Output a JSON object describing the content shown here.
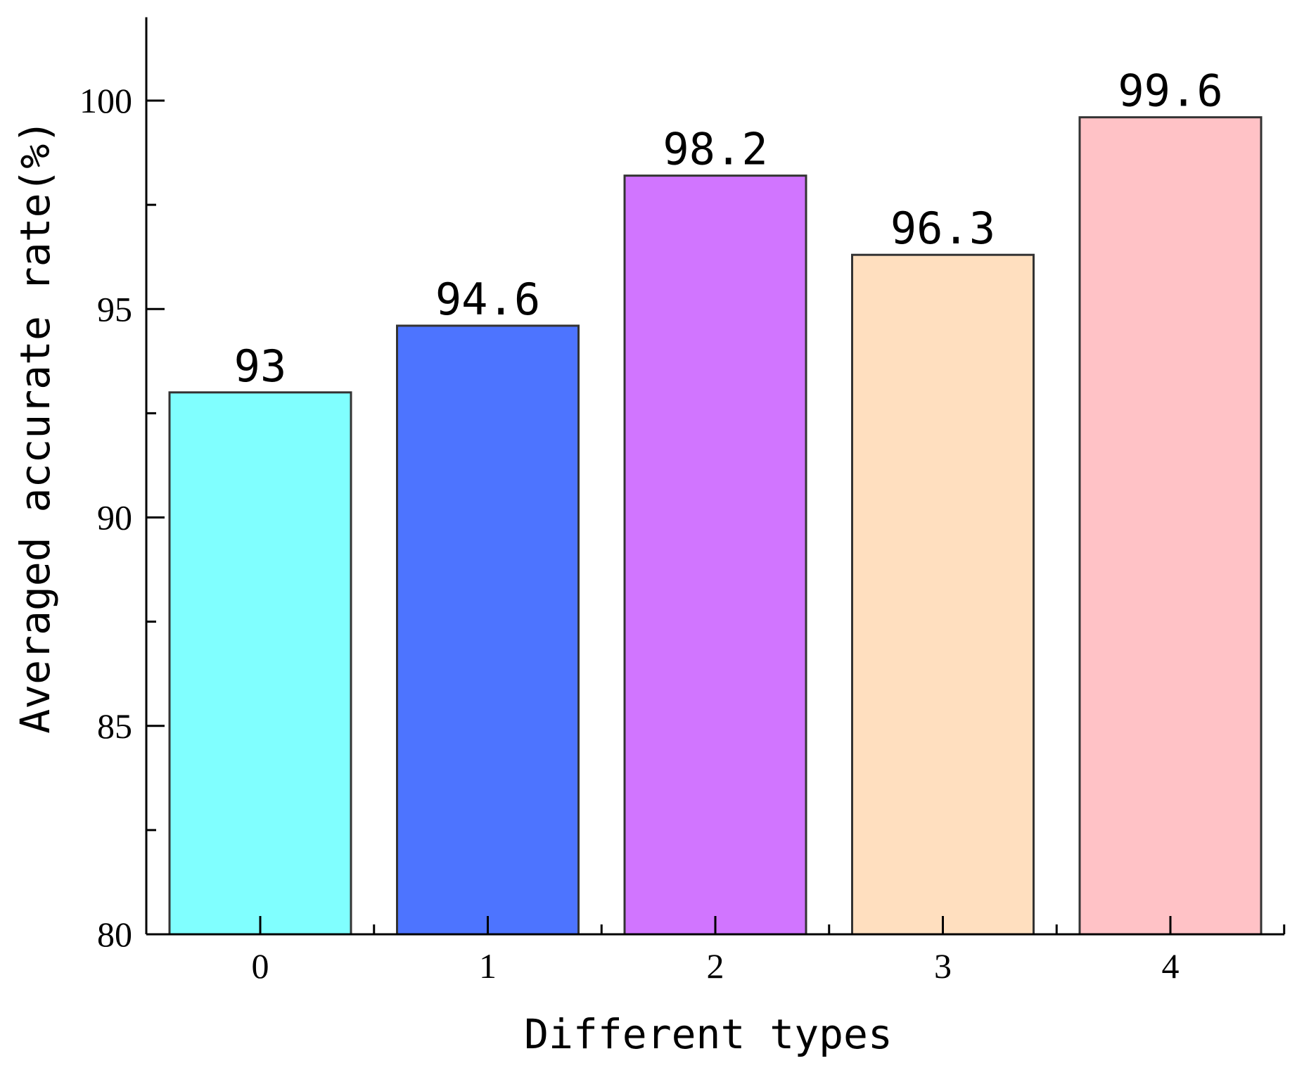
{
  "chart_data": {
    "type": "bar",
    "title": "",
    "xlabel": "Different types",
    "ylabel": "Averaged accurate rate(%)",
    "categories": [
      "0",
      "1",
      "2",
      "3",
      "4"
    ],
    "values": [
      93,
      94.6,
      98.2,
      96.3,
      99.6
    ],
    "value_labels": [
      "93",
      "94.6",
      "98.2",
      "96.3",
      "99.6"
    ],
    "colors": [
      "#80FFFF",
      "#4D74FF",
      "#D175FF",
      "#FFDFBF",
      "#FFC2C6"
    ],
    "ylim": [
      80,
      102
    ],
    "yticks_major": [
      80,
      85,
      90,
      95,
      100
    ],
    "yticks_minor": [
      82.5,
      87.5,
      92.5,
      97.5
    ],
    "grid": false,
    "legend": "none"
  }
}
